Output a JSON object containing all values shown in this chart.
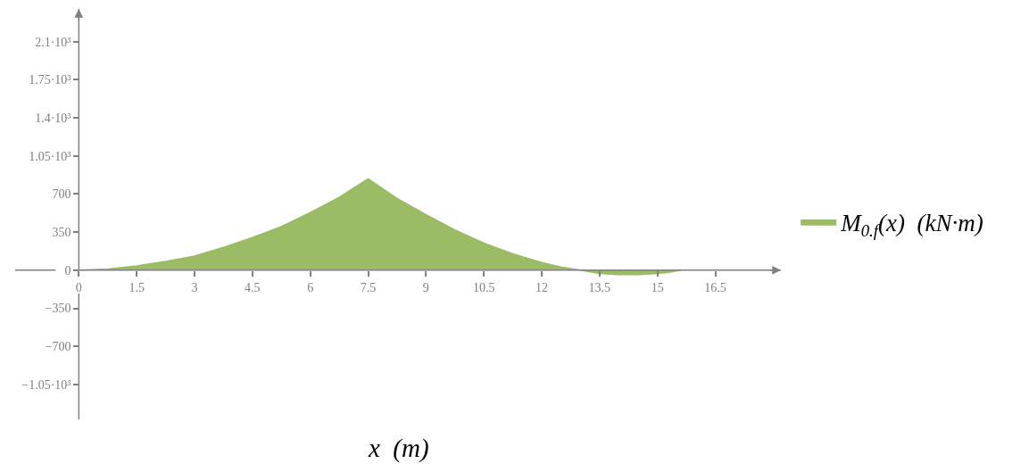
{
  "chart_data": {
    "type": "area",
    "xlabel": "x  (m)",
    "legend": "right",
    "x": [
      0,
      0.75,
      1.5,
      2.25,
      3,
      3.75,
      4.5,
      5.25,
      6,
      6.75,
      7.5,
      8.25,
      9,
      9.75,
      10.5,
      11.25,
      12,
      12.5,
      13,
      13.5,
      14,
      14.25,
      14.5,
      15,
      15.3,
      15.6
    ],
    "series": [
      {
        "name": "M$_{0.f}$(x)  (kN·m)",
        "color": "#9bbb64",
        "values": [
          0,
          10,
          40,
          80,
          130,
          210,
          300,
          400,
          530,
          670,
          840,
          660,
          510,
          370,
          250,
          150,
          70,
          30,
          0,
          -30,
          -40,
          -40,
          -40,
          -30,
          -20,
          0
        ]
      }
    ],
    "xlim": [
      -1.65,
      18.2
    ],
    "ylim": [
      -1370,
      2400
    ],
    "xticks": [
      0,
      1.5,
      3,
      4.5,
      6,
      7.5,
      9,
      10.5,
      12,
      13.5,
      15,
      16.5
    ],
    "yticks": [
      {
        "value": -1050,
        "label": "−1.05·10³"
      },
      {
        "value": -700,
        "label": "−700"
      },
      {
        "value": -350,
        "label": "−350"
      },
      0,
      350,
      700,
      {
        "value": 1050,
        "label": "1.05·10³"
      },
      {
        "value": 1400,
        "label": "1.4·10³"
      },
      {
        "value": 1750,
        "label": "1.75·10³"
      },
      {
        "value": 2100,
        "label": "2.1·10³"
      }
    ]
  }
}
